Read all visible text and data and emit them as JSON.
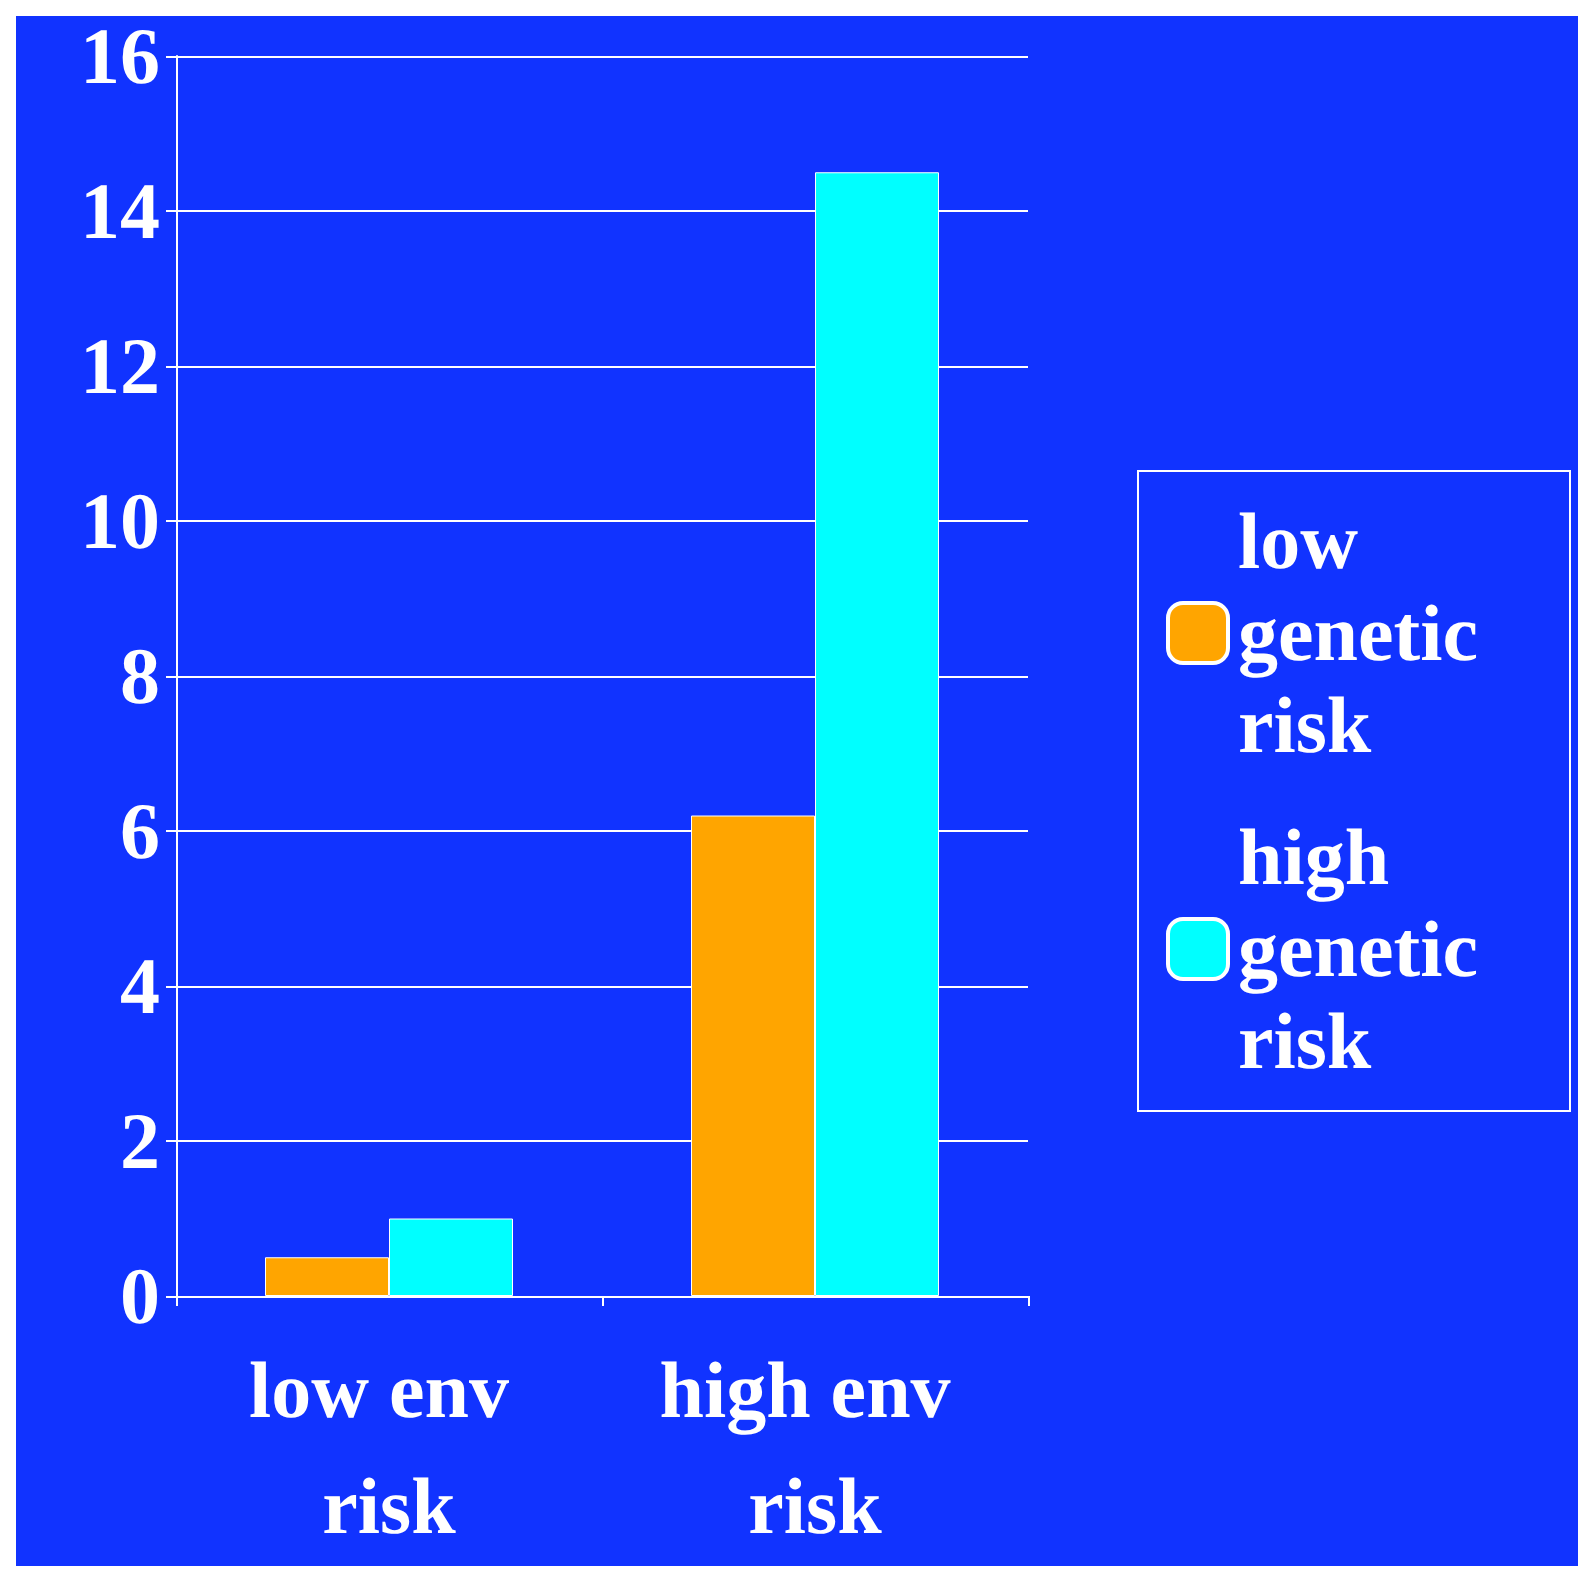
{
  "chart_data": {
    "type": "bar",
    "categories": [
      "low env risk",
      "high env risk"
    ],
    "series": [
      {
        "name": "low genetic risk",
        "color": "#ffa500",
        "values": [
          0.5,
          6.2
        ]
      },
      {
        "name": "high genetic risk",
        "color": "#00ffff",
        "values": [
          1.0,
          14.5
        ]
      }
    ],
    "ylim": [
      0,
      16
    ],
    "yticks": [
      0,
      2,
      4,
      6,
      8,
      10,
      12,
      14,
      16
    ],
    "grid": "y",
    "legend": "right"
  }
}
